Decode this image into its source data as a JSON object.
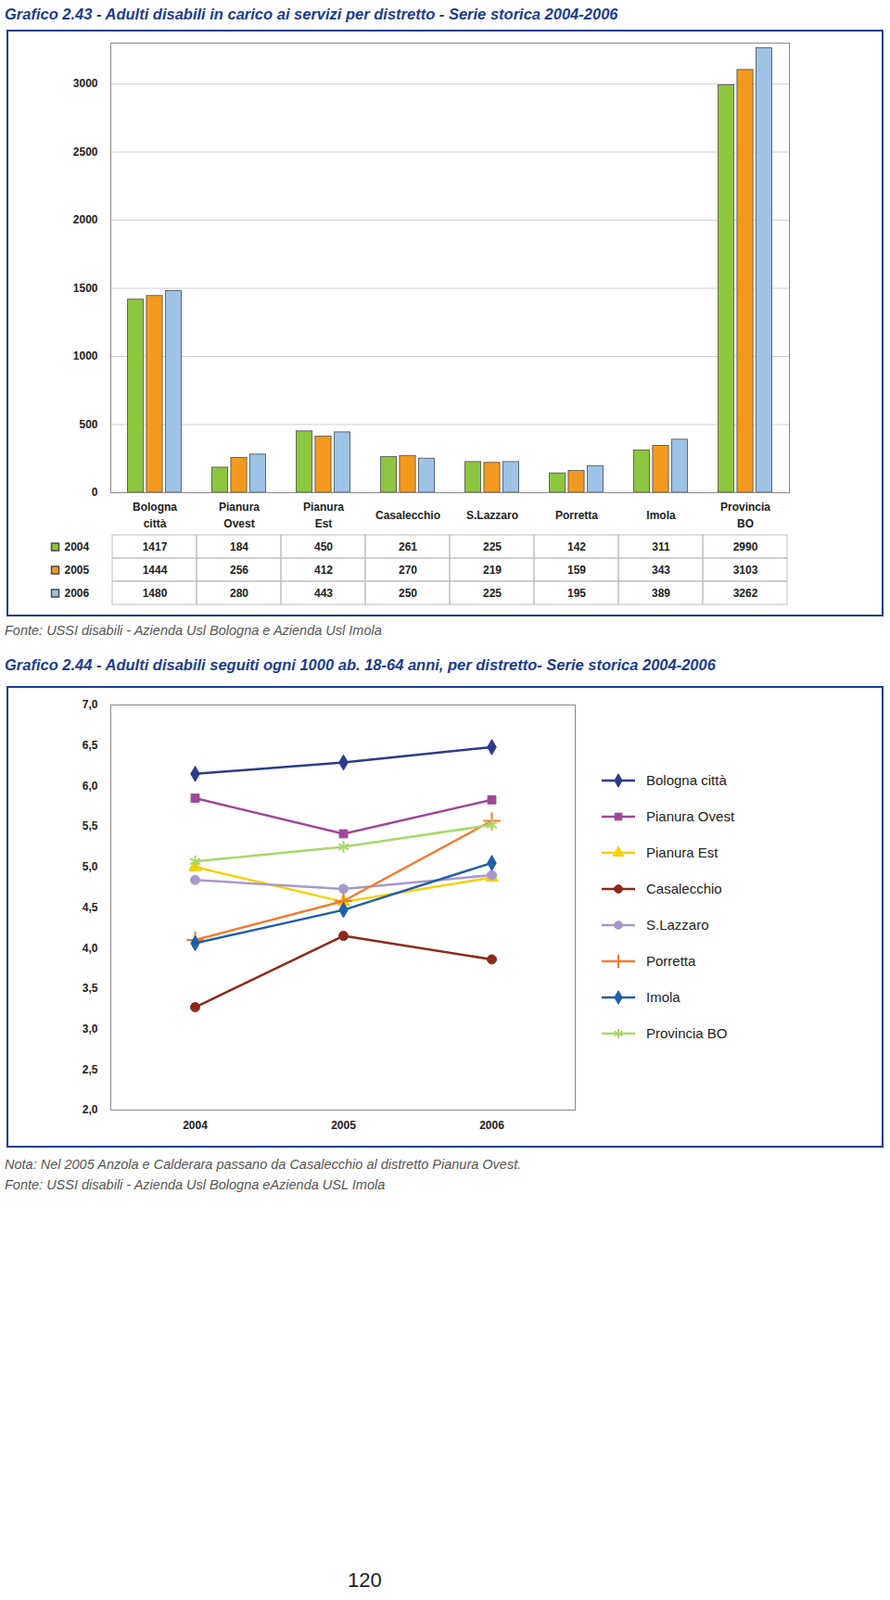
{
  "chart_data": [
    {
      "type": "bar",
      "title": "Grafico 2.43 - Adulti disabili in carico ai servizi per distretto - Serie storica 2004-2006",
      "categories": [
        "Bologna\ncittà",
        "Pianura\nOvest",
        "Pianura\nEst",
        "Casalecchio",
        "S.Lazzaro",
        "Porretta",
        "Imola",
        "Provincia\nBO"
      ],
      "series": [
        {
          "name": "2004",
          "color": "#8dc63f",
          "values": [
            1417,
            184,
            450,
            261,
            225,
            142,
            311,
            2990
          ]
        },
        {
          "name": "2005",
          "color": "#f39a1e",
          "values": [
            1444,
            256,
            412,
            270,
            219,
            159,
            343,
            3103
          ]
        },
        {
          "name": "2006",
          "color": "#9dc3e6",
          "values": [
            1480,
            280,
            443,
            250,
            225,
            195,
            389,
            3262
          ]
        }
      ],
      "ylim": [
        0,
        3300
      ],
      "yticks": [
        0,
        500,
        1000,
        1500,
        2000,
        2500,
        3000
      ],
      "grid": true,
      "legend": "bottom",
      "source": "Fonte: USSI disabili - Azienda Usl Bologna e Azienda Usl  Imola"
    },
    {
      "type": "line",
      "title": "Grafico 2.44 - Adulti disabili seguiti ogni 1000 ab. 18-64 anni, per distretto- Serie storica 2004-2006",
      "categories": [
        "2004",
        "2005",
        "2006"
      ],
      "series": [
        {
          "name": "Bologna città",
          "color": "#2e3a8c",
          "marker": "diamond",
          "values": [
            6.15,
            6.29,
            6.48
          ]
        },
        {
          "name": "Pianura Ovest",
          "color": "#a0479a",
          "marker": "square",
          "values": [
            5.85,
            5.41,
            5.83
          ]
        },
        {
          "name": "Pianura Est",
          "color": "#f5d000",
          "marker": "triangle",
          "values": [
            5.0,
            4.57,
            4.87
          ]
        },
        {
          "name": "Casalecchio",
          "color": "#8b2a1a",
          "marker": "circle",
          "values": [
            3.27,
            4.15,
            3.86
          ]
        },
        {
          "name": "S.Lazzaro",
          "color": "#a898cc",
          "marker": "circle",
          "values": [
            4.84,
            4.73,
            4.9
          ]
        },
        {
          "name": "Porretta",
          "color": "#f47a2c",
          "marker": "plus",
          "values": [
            4.1,
            4.58,
            5.57
          ]
        },
        {
          "name": "Imola",
          "color": "#1f5faa",
          "marker": "diamond",
          "values": [
            4.06,
            4.47,
            5.05
          ]
        },
        {
          "name": "Provincia BO",
          "color": "#a8d86a",
          "marker": "asterisk",
          "values": [
            5.07,
            5.25,
            5.52
          ]
        }
      ],
      "ylim": [
        2,
        7
      ],
      "yticks": [
        {
          "value": 2,
          "label": "2,0"
        },
        {
          "value": 2.5,
          "label": "2,5"
        },
        {
          "value": 3,
          "label": "3,0"
        },
        {
          "value": 3.5,
          "label": "3,5"
        },
        {
          "value": 4,
          "label": "4,0"
        },
        {
          "value": 4.5,
          "label": "4,5"
        },
        {
          "value": 5,
          "label": "5,0"
        },
        {
          "value": 5.5,
          "label": "5,5"
        },
        {
          "value": 6,
          "label": "6,0"
        },
        {
          "value": 6.5,
          "label": "6,5"
        },
        {
          "value": 7,
          "label": "7,0"
        }
      ],
      "grid": false,
      "legend": "right",
      "note": "Nota: Nel 2005 Anzola e Calderara passano da Casalecchio al distretto Pianura Ovest.",
      "source": "Fonte: USSI disabili - Azienda Usl Bologna eAzienda USL Imola"
    }
  ],
  "page_number": "120"
}
